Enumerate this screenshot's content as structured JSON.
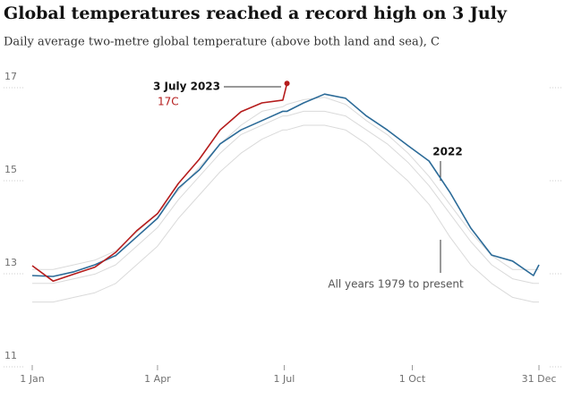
{
  "chart_data": {
    "type": "line",
    "title": "Global temperatures reached a record high on 3 July",
    "subtitle": "Daily average two-metre global temperature (above both land and sea), C",
    "x": [
      1,
      16,
      31,
      46,
      61,
      76,
      91,
      106,
      121,
      136,
      151,
      166,
      181,
      184,
      196,
      211,
      226,
      241,
      256,
      271,
      286,
      301,
      316,
      331,
      346,
      361,
      365
    ],
    "xlim": [
      1,
      365
    ],
    "xticks": [
      {
        "value": 1,
        "label": "1 Jan"
      },
      {
        "value": 91,
        "label": "1 Apr"
      },
      {
        "value": 182,
        "label": "1 Jul"
      },
      {
        "value": 274,
        "label": "1 Oct"
      },
      {
        "value": 365,
        "label": "31 Dec"
      }
    ],
    "ylim": [
      11,
      17
    ],
    "yticks": [
      11,
      13,
      15,
      17
    ],
    "series": [
      {
        "color": "#dadada",
        "values": [
          12.2,
          12.2,
          12.3,
          12.4,
          12.6,
          13.0,
          13.4,
          14.0,
          14.5,
          15.0,
          15.4,
          15.7,
          15.9,
          15.9,
          16.0,
          16.0,
          15.9,
          15.6,
          15.2,
          14.8,
          14.3,
          13.6,
          13.0,
          12.6,
          12.3,
          12.2,
          12.2
        ]
      },
      {
        "color": "#dadada",
        "values": [
          12.6,
          12.6,
          12.7,
          12.8,
          13.0,
          13.4,
          13.8,
          14.4,
          14.9,
          15.4,
          15.8,
          16.0,
          16.2,
          16.2,
          16.3,
          16.3,
          16.2,
          15.9,
          15.6,
          15.2,
          14.7,
          14.1,
          13.5,
          13.0,
          12.7,
          12.6,
          12.6
        ]
      },
      {
        "color": "#dadada",
        "values": [
          12.9,
          12.9,
          13.0,
          13.1,
          13.3,
          13.7,
          14.1,
          14.6,
          15.1,
          15.6,
          16.0,
          16.3,
          16.4,
          16.45,
          16.55,
          16.6,
          16.45,
          16.1,
          15.8,
          15.4,
          14.9,
          14.3,
          13.7,
          13.2,
          12.9,
          12.9,
          12.9
        ]
      },
      {
        "color": "#2c6b98",
        "values": [
          12.77,
          12.75,
          12.85,
          13.0,
          13.2,
          13.6,
          14.0,
          14.65,
          15.04,
          15.6,
          15.9,
          16.1,
          16.3,
          16.3,
          16.48,
          16.67,
          16.58,
          16.2,
          15.9,
          15.56,
          15.23,
          14.56,
          13.79,
          13.21,
          13.08,
          12.77,
          13.0
        ]
      },
      {
        "color": "#b51c1c",
        "values": [
          12.98,
          12.65,
          12.8,
          12.95,
          13.27,
          13.73,
          14.1,
          14.75,
          15.27,
          15.9,
          16.29,
          16.48,
          16.54,
          16.9,
          null,
          null,
          null,
          null,
          null,
          null,
          null,
          null,
          null,
          null,
          null,
          null,
          null
        ]
      }
    ],
    "annotations": [
      {
        "text": "3 July 2023",
        "color": "#121212"
      },
      {
        "text": "17C",
        "color": "#b51c1c"
      },
      {
        "text": "2022",
        "color": "#121212"
      },
      {
        "text": "All years 1979 to present",
        "color": "#555555"
      }
    ]
  }
}
